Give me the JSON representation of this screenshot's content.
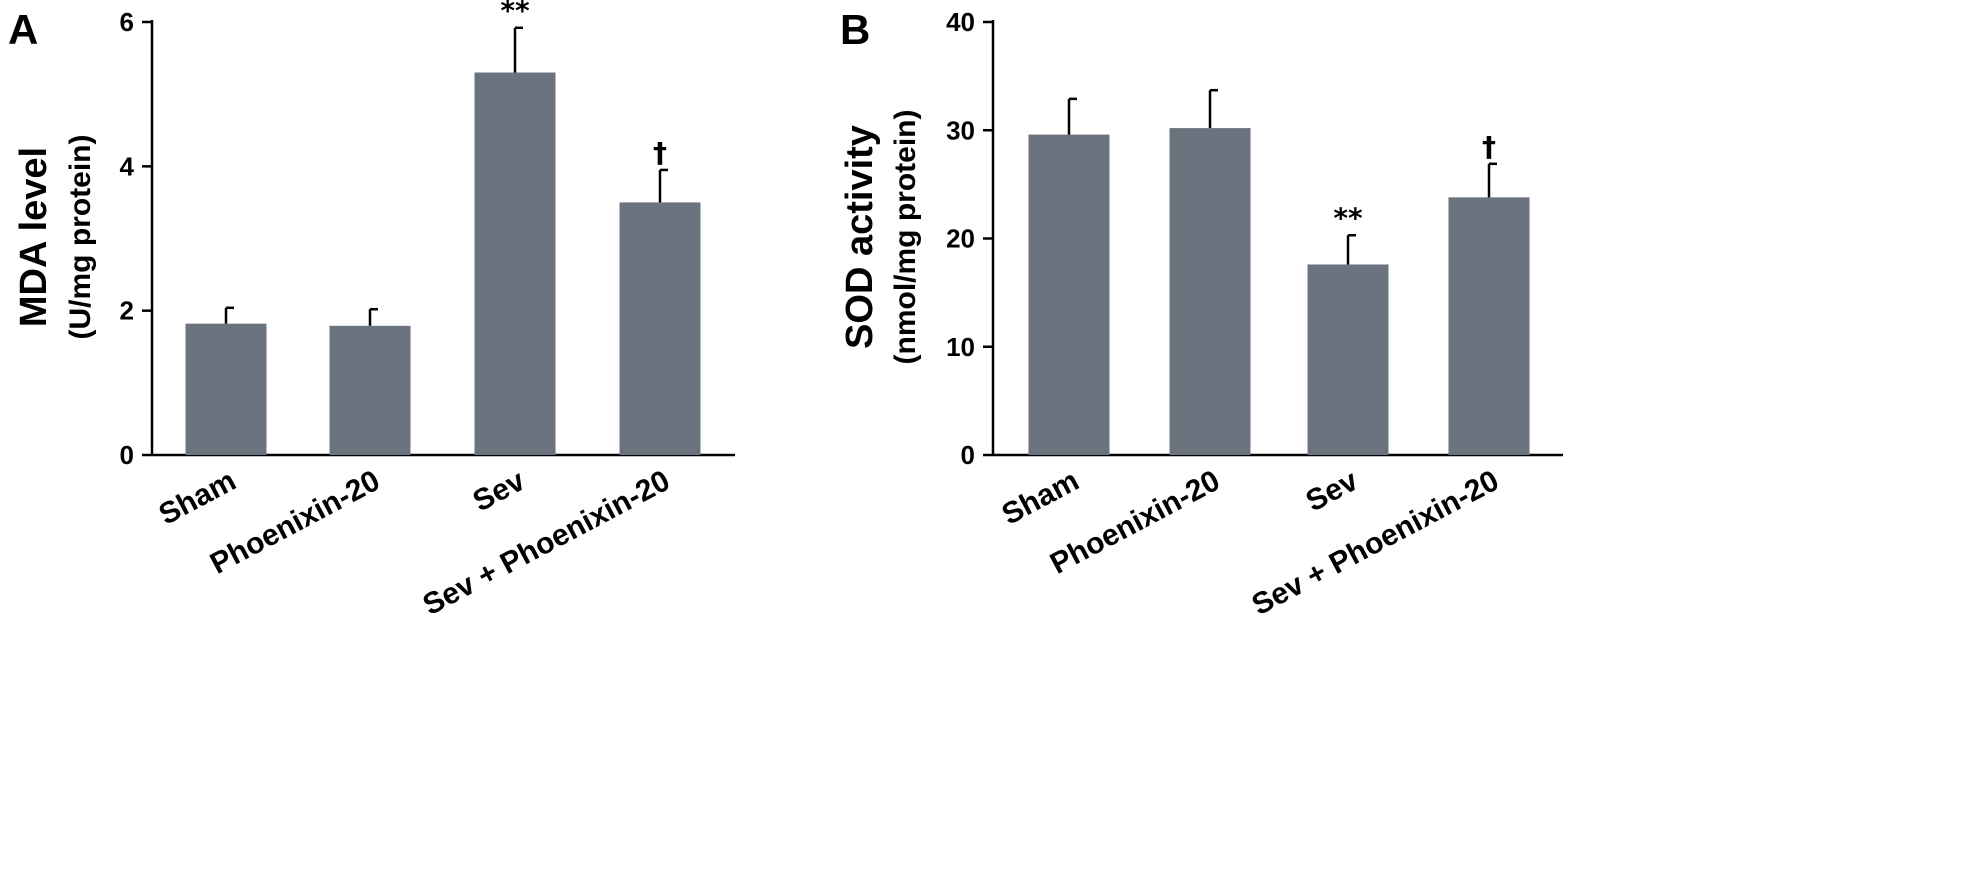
{
  "panels": [
    {
      "label": "A",
      "ylabel_line1": "MDA level",
      "ylabel_line2": "(U/mg protein)",
      "ticks": [
        "0",
        "2",
        "4",
        "6"
      ]
    },
    {
      "label": "B",
      "ylabel_line1": "SOD activity",
      "ylabel_line2": "(nmol/mg protein)",
      "ticks": [
        "0",
        "10",
        "20",
        "30",
        "40"
      ]
    }
  ],
  "chart_data": [
    {
      "type": "bar",
      "categories": [
        "Sham",
        "Phoenixin-20",
        "Sev",
        "Sev + Phoenixin-20"
      ],
      "values": [
        1.82,
        1.79,
        5.3,
        3.5
      ],
      "errors": [
        0.22,
        0.23,
        0.62,
        0.45
      ],
      "annotations": [
        "",
        "",
        "**",
        "†"
      ],
      "ylabel": "MDA level (U/mg protein)",
      "ylim": [
        0,
        6
      ],
      "yticks": [
        0,
        2,
        4,
        6
      ],
      "bar_color": "#6b737f",
      "grid": false
    },
    {
      "type": "bar",
      "categories": [
        "Sham",
        "Phoenixin-20",
        "Sev",
        "Sev + Phoenixin-20"
      ],
      "values": [
        29.6,
        30.2,
        17.6,
        23.8
      ],
      "errors": [
        3.3,
        3.5,
        2.7,
        3.1
      ],
      "annotations": [
        "",
        "",
        "**",
        "†"
      ],
      "ylabel": "SOD activity (nmol/mg protein)",
      "ylim": [
        0,
        40
      ],
      "yticks": [
        0,
        10,
        20,
        30,
        40
      ],
      "bar_color": "#6b737f",
      "grid": false
    }
  ]
}
